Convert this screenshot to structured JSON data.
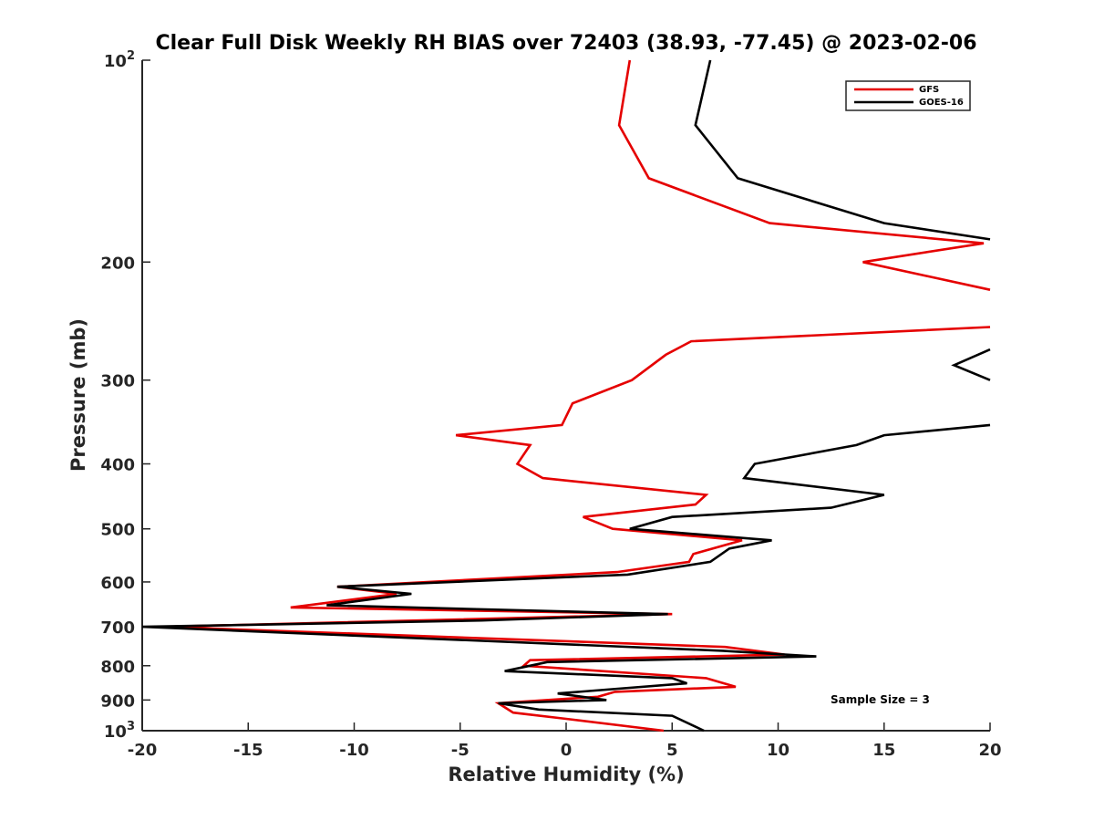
{
  "chart_data": {
    "type": "line",
    "title": "Clear Full Disk Weekly RH BIAS over 72403 (38.93, -77.45) @ 2023-02-06",
    "xlabel": "Relative Humidity (%)",
    "ylabel": "Pressure (mb)",
    "xlim": [
      -20,
      20
    ],
    "ylim": [
      100,
      1000
    ],
    "y_scale": "log",
    "y_reversed": true,
    "x_ticks": [
      -20,
      -15,
      -10,
      -5,
      0,
      5,
      10,
      15,
      20
    ],
    "x_tick_labels": [
      "-20",
      "-15",
      "-10",
      "-5",
      "0",
      "5",
      "10",
      "15",
      "20"
    ],
    "y_ticks": [
      100,
      200,
      300,
      400,
      500,
      600,
      700,
      800,
      900,
      1000
    ],
    "y_tick_labels": [
      {
        "base": "10",
        "exp": "2"
      },
      {
        "base": "200"
      },
      {
        "base": "300"
      },
      {
        "base": "400"
      },
      {
        "base": "500"
      },
      {
        "base": "600"
      },
      {
        "base": "700"
      },
      {
        "base": "800"
      },
      {
        "base": "900"
      },
      {
        "base": "10",
        "exp": "3"
      }
    ],
    "grid": false,
    "legend_position": "top-right",
    "series": [
      {
        "name": "GFS",
        "color": "#e50000",
        "points": [
          [
            3.0,
            100
          ],
          [
            2.5,
            125
          ],
          [
            3.9,
            150
          ],
          [
            9.6,
            175
          ],
          [
            19.7,
            187.5
          ],
          [
            14.0,
            200
          ],
          [
            20.0,
            220
          ],
          [
            null,
            null
          ],
          [
            20.0,
            250
          ],
          [
            5.9,
            262.5
          ],
          [
            4.7,
            275
          ],
          [
            3.1,
            300
          ],
          [
            0.3,
            325
          ],
          [
            -0.2,
            350
          ],
          [
            -5.2,
            362.5
          ],
          [
            -1.7,
            375
          ],
          [
            -2.3,
            400
          ],
          [
            -1.1,
            420
          ],
          [
            6.6,
            445
          ],
          [
            6.1,
            460
          ],
          [
            0.8,
            480
          ],
          [
            2.2,
            500
          ],
          [
            8.3,
            520
          ],
          [
            6.0,
            545
          ],
          [
            5.8,
            560
          ],
          [
            2.4,
            580
          ],
          [
            -10.8,
            610
          ],
          [
            -8.0,
            625
          ],
          [
            -13.0,
            655
          ],
          [
            5.0,
            670
          ],
          [
            -19.0,
            700
          ],
          [
            7.5,
            750
          ],
          [
            10.3,
            770
          ],
          [
            -1.7,
            785
          ],
          [
            -2.0,
            800
          ],
          [
            6.6,
            835
          ],
          [
            8.0,
            860
          ],
          [
            2.3,
            875
          ],
          [
            1.5,
            890
          ],
          [
            -3.2,
            910
          ],
          [
            -2.5,
            940
          ],
          [
            0.0,
            960
          ],
          [
            4.6,
            1000
          ]
        ]
      },
      {
        "name": "GOES-16",
        "color": "#000000",
        "points": [
          [
            6.8,
            100
          ],
          [
            6.1,
            125
          ],
          [
            8.1,
            150
          ],
          [
            15.0,
            175
          ],
          [
            20.0,
            185
          ],
          [
            null,
            null
          ],
          [
            20.0,
            270
          ],
          [
            18.3,
            285
          ],
          [
            20.0,
            300
          ],
          [
            null,
            null
          ],
          [
            20.0,
            350
          ],
          [
            15.0,
            362.5
          ],
          [
            13.7,
            375
          ],
          [
            8.9,
            400
          ],
          [
            8.4,
            420
          ],
          [
            15.0,
            445
          ],
          [
            12.5,
            465
          ],
          [
            5.0,
            480
          ],
          [
            3.0,
            500
          ],
          [
            9.7,
            520
          ],
          [
            7.7,
            535
          ],
          [
            6.8,
            560
          ],
          [
            2.9,
            585
          ],
          [
            -10.8,
            610
          ],
          [
            -7.3,
            625
          ],
          [
            -11.3,
            650
          ],
          [
            4.8,
            670
          ],
          [
            -4.0,
            685
          ],
          [
            -20.0,
            700
          ],
          [
            7.4,
            760
          ],
          [
            11.8,
            775
          ],
          [
            -0.9,
            790
          ],
          [
            -2.9,
            815
          ],
          [
            5.0,
            835
          ],
          [
            5.7,
            850
          ],
          [
            -0.4,
            880
          ],
          [
            1.9,
            900
          ],
          [
            -3.2,
            910
          ],
          [
            -1.3,
            930
          ],
          [
            5.0,
            950
          ],
          [
            6.5,
            1000
          ]
        ]
      }
    ],
    "annotations": [
      "Sample Size = 3"
    ]
  }
}
